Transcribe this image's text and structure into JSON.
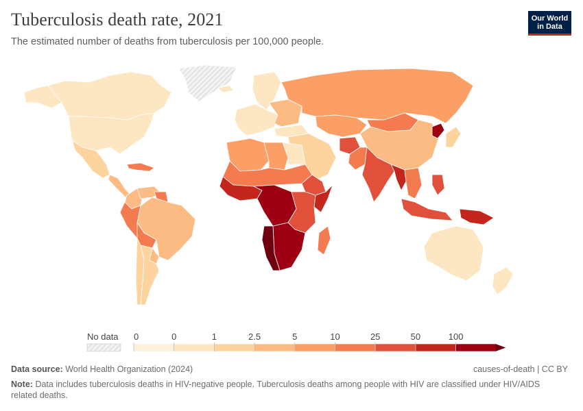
{
  "header": {
    "title": "Tuberculosis death rate, 2021",
    "subtitle": "The estimated number of deaths from tuberculosis per 100,000 people.",
    "logo_line1": "Our World",
    "logo_line2": "in Data"
  },
  "legend": {
    "no_data_label": "No data",
    "tick_labels": [
      "0",
      "0",
      "1",
      "2.5",
      "5",
      "10",
      "25",
      "50",
      "100"
    ],
    "colors": [
      "#fef0d9",
      "#fde6c2",
      "#fdd49e",
      "#fdbb84",
      "#fc9f66",
      "#f47a4f",
      "#e0503a",
      "#c3261d",
      "#9e0014",
      "#6e0010"
    ]
  },
  "map": {
    "ocean": "#ffffff",
    "no_data_fill": "#e6e6e6",
    "regions": [
      {
        "name": "Canada",
        "bin": 1
      },
      {
        "name": "Greenland",
        "bin": -1
      },
      {
        "name": "Alaska",
        "bin": 1
      },
      {
        "name": "United States",
        "bin": 1
      },
      {
        "name": "Mexico",
        "bin": 2
      },
      {
        "name": "Central America",
        "bin": 3
      },
      {
        "name": "Caribbean",
        "bin": 5
      },
      {
        "name": "Colombia",
        "bin": 3
      },
      {
        "name": "Venezuela",
        "bin": 3
      },
      {
        "name": "Guyana",
        "bin": 5
      },
      {
        "name": "Brazil",
        "bin": 3
      },
      {
        "name": "Peru",
        "bin": 5
      },
      {
        "name": "Bolivia",
        "bin": 5
      },
      {
        "name": "Paraguay",
        "bin": 3
      },
      {
        "name": "Argentina",
        "bin": 2
      },
      {
        "name": "Chile",
        "bin": 2
      },
      {
        "name": "Iceland",
        "bin": 1
      },
      {
        "name": "Scandinavia",
        "bin": 1
      },
      {
        "name": "Western Europe",
        "bin": 1
      },
      {
        "name": "Eastern Europe",
        "bin": 3
      },
      {
        "name": "Russia",
        "bin": 4
      },
      {
        "name": "Kazakhstan",
        "bin": 4
      },
      {
        "name": "Mongolia",
        "bin": 5
      },
      {
        "name": "China",
        "bin": 3
      },
      {
        "name": "North Korea",
        "bin": 8
      },
      {
        "name": "Japan",
        "bin": 2
      },
      {
        "name": "Turkey",
        "bin": 1
      },
      {
        "name": "Middle East",
        "bin": 2
      },
      {
        "name": "Afghanistan",
        "bin": 6
      },
      {
        "name": "Pakistan",
        "bin": 5
      },
      {
        "name": "India",
        "bin": 6
      },
      {
        "name": "Myanmar",
        "bin": 7
      },
      {
        "name": "Mainland Southeast Asia",
        "bin": 5
      },
      {
        "name": "Indonesia",
        "bin": 6
      },
      {
        "name": "Philippines",
        "bin": 6
      },
      {
        "name": "Papua New Guinea",
        "bin": 7
      },
      {
        "name": "Australia",
        "bin": 1
      },
      {
        "name": "New Zealand",
        "bin": 1
      },
      {
        "name": "North Africa West",
        "bin": 4
      },
      {
        "name": "Libya",
        "bin": 4
      },
      {
        "name": "Egypt",
        "bin": 1
      },
      {
        "name": "Sahel",
        "bin": 5
      },
      {
        "name": "West Africa",
        "bin": 7
      },
      {
        "name": "Central Africa",
        "bin": 8
      },
      {
        "name": "Horn of Africa",
        "bin": 6
      },
      {
        "name": "Somalia",
        "bin": 7
      },
      {
        "name": "East Africa",
        "bin": 6
      },
      {
        "name": "Southern Africa",
        "bin": 8
      },
      {
        "name": "Namibia",
        "bin": 9
      },
      {
        "name": "Madagascar",
        "bin": 5
      }
    ]
  },
  "footer": {
    "source_label": "Data source:",
    "source_text": "World Health Organization (2024)",
    "license": "causes-of-death | CC BY",
    "note_label": "Note:",
    "note_text": "Data includes tuberculosis deaths in HIV-negative people. Tuberculosis deaths among people with HIV are classified under HIV/AIDS related deaths."
  }
}
